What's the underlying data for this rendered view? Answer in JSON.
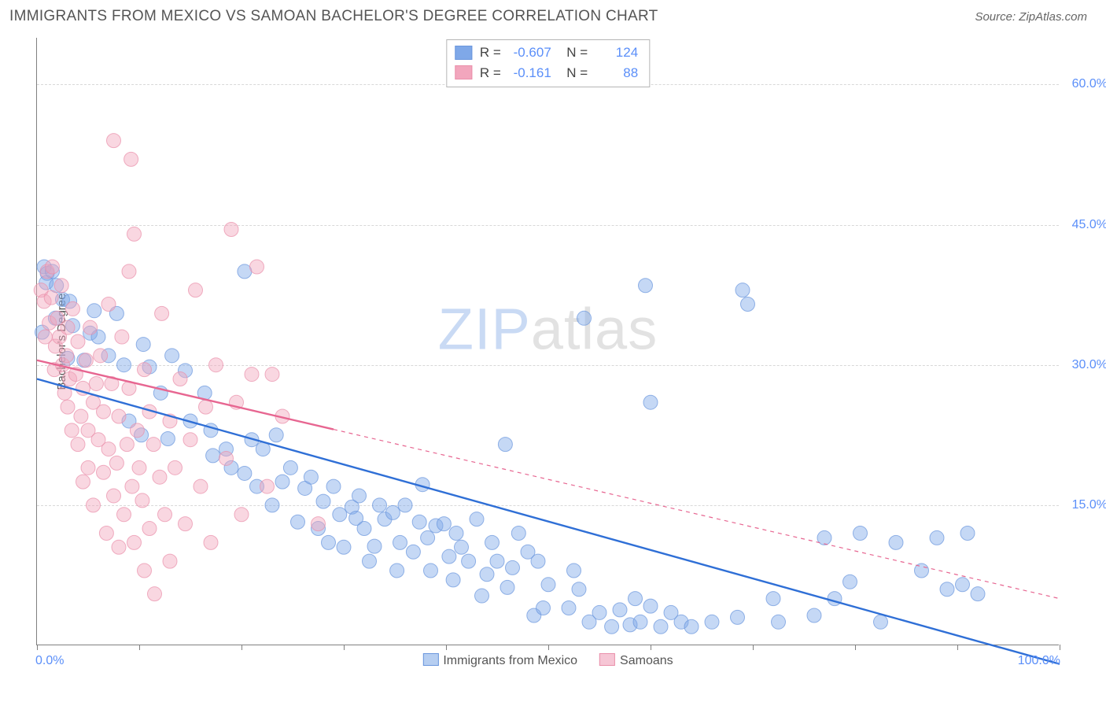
{
  "header": {
    "title": "IMMIGRANTS FROM MEXICO VS SAMOAN BACHELOR'S DEGREE CORRELATION CHART",
    "source": "Source: ZipAtlas.com"
  },
  "watermark": {
    "part1": "ZIP",
    "part2": "atlas"
  },
  "chart": {
    "type": "scatter",
    "background_color": "#ffffff",
    "grid_color": "#d8d8d8",
    "axis_color": "#808080",
    "ylabel": "Bachelor's Degree",
    "ylabel_fontsize": 15,
    "xlim": [
      0,
      100
    ],
    "ylim": [
      0,
      65
    ],
    "xtick_positions": [
      0,
      10,
      20,
      30,
      40,
      50,
      60,
      70,
      80,
      90,
      100
    ],
    "ytick_values": [
      15,
      30,
      45,
      60
    ],
    "ytick_labels": [
      "15.0%",
      "30.0%",
      "45.0%",
      "60.0%"
    ],
    "xaxis_label_left": "0.0%",
    "xaxis_label_right": "100.0%",
    "tick_label_color": "#5b8ff9",
    "tick_label_fontsize": 16,
    "marker_radius": 9,
    "marker_opacity": 0.45,
    "line_width": 2.4,
    "series": [
      {
        "name": "Immigrants from Mexico",
        "color": "#7fa8e8",
        "stroke": "#6a96dd",
        "line_color": "#2f6fd6",
        "line_dash": "none",
        "trend": {
          "x1": 0,
          "y1": 28.5,
          "x2": 100,
          "y2": -2.0
        },
        "legend": {
          "R": "-0.607",
          "N": "124"
        },
        "points": [
          [
            0.7,
            40.5
          ],
          [
            1.0,
            39.8
          ],
          [
            1.5,
            40.0
          ],
          [
            0.9,
            38.8
          ],
          [
            1.9,
            38.5
          ],
          [
            2.5,
            37.0
          ],
          [
            1.8,
            35.0
          ],
          [
            0.5,
            33.5
          ],
          [
            3.2,
            36.8
          ],
          [
            3.5,
            34.2
          ],
          [
            5.6,
            35.8
          ],
          [
            5.2,
            33.4
          ],
          [
            3.0,
            30.7
          ],
          [
            4.6,
            30.5
          ],
          [
            6.0,
            33.0
          ],
          [
            7.8,
            35.5
          ],
          [
            7.0,
            31.0
          ],
          [
            8.5,
            30.0
          ],
          [
            10.4,
            32.2
          ],
          [
            11.0,
            29.8
          ],
          [
            13.2,
            31.0
          ],
          [
            12.1,
            27.0
          ],
          [
            9.0,
            24.0
          ],
          [
            10.2,
            22.5
          ],
          [
            12.8,
            22.1
          ],
          [
            14.5,
            29.4
          ],
          [
            15.0,
            24.0
          ],
          [
            16.4,
            27.0
          ],
          [
            17.0,
            23.0
          ],
          [
            17.2,
            20.3
          ],
          [
            18.5,
            21.0
          ],
          [
            19.0,
            19.0
          ],
          [
            20.3,
            18.4
          ],
          [
            21.0,
            22.0
          ],
          [
            21.5,
            17.0
          ],
          [
            22.1,
            21.0
          ],
          [
            23.0,
            15.0
          ],
          [
            23.4,
            22.5
          ],
          [
            24.0,
            17.5
          ],
          [
            24.8,
            19.0
          ],
          [
            25.5,
            13.2
          ],
          [
            26.2,
            16.8
          ],
          [
            26.8,
            18.0
          ],
          [
            27.5,
            12.5
          ],
          [
            28.0,
            15.4
          ],
          [
            28.5,
            11.0
          ],
          [
            29.0,
            17.0
          ],
          [
            29.6,
            14.0
          ],
          [
            30.0,
            10.5
          ],
          [
            30.8,
            14.8
          ],
          [
            31.2,
            13.6
          ],
          [
            31.5,
            16.0
          ],
          [
            32.0,
            12.5
          ],
          [
            32.5,
            9.0
          ],
          [
            33.0,
            10.6
          ],
          [
            33.5,
            15.0
          ],
          [
            34.0,
            13.5
          ],
          [
            34.8,
            14.2
          ],
          [
            35.2,
            8.0
          ],
          [
            35.5,
            11.0
          ],
          [
            36.0,
            15.0
          ],
          [
            36.8,
            10.0
          ],
          [
            37.4,
            13.2
          ],
          [
            37.7,
            17.2
          ],
          [
            38.2,
            11.5
          ],
          [
            38.5,
            8.0
          ],
          [
            39.0,
            12.8
          ],
          [
            39.8,
            13.0
          ],
          [
            40.3,
            9.5
          ],
          [
            40.7,
            7.0
          ],
          [
            41.0,
            12.0
          ],
          [
            41.5,
            10.5
          ],
          [
            42.2,
            9.0
          ],
          [
            43.0,
            13.5
          ],
          [
            43.5,
            5.3
          ],
          [
            44.0,
            7.6
          ],
          [
            44.5,
            11.0
          ],
          [
            45.0,
            9.0
          ],
          [
            45.8,
            21.5
          ],
          [
            46.0,
            6.2
          ],
          [
            46.5,
            8.3
          ],
          [
            47.1,
            12.0
          ],
          [
            48.0,
            10.0
          ],
          [
            48.6,
            3.2
          ],
          [
            49.0,
            9.0
          ],
          [
            49.5,
            4.0
          ],
          [
            50.0,
            6.5
          ],
          [
            52.0,
            4.0
          ],
          [
            52.5,
            8.0
          ],
          [
            20.3,
            40.0
          ],
          [
            53.5,
            35.0
          ],
          [
            54.0,
            2.5
          ],
          [
            53.0,
            6.0
          ],
          [
            55.0,
            3.5
          ],
          [
            56.2,
            2.0
          ],
          [
            57.0,
            3.8
          ],
          [
            58.0,
            2.2
          ],
          [
            58.5,
            5.0
          ],
          [
            59.0,
            2.5
          ],
          [
            60.0,
            4.2
          ],
          [
            60.0,
            26.0
          ],
          [
            61.0,
            2.0
          ],
          [
            62.0,
            3.5
          ],
          [
            63.0,
            2.5
          ],
          [
            64.0,
            2.0
          ],
          [
            66.0,
            2.5
          ],
          [
            59.5,
            38.5
          ],
          [
            68.5,
            3.0
          ],
          [
            69.0,
            38.0
          ],
          [
            72.0,
            5.0
          ],
          [
            72.5,
            2.5
          ],
          [
            76.0,
            3.2
          ],
          [
            77.0,
            11.5
          ],
          [
            78.0,
            5.0
          ],
          [
            79.5,
            6.8
          ],
          [
            80.5,
            12.0
          ],
          [
            69.5,
            36.5
          ],
          [
            82.5,
            2.5
          ],
          [
            84.0,
            11.0
          ],
          [
            86.5,
            8.0
          ],
          [
            88.0,
            11.5
          ],
          [
            89.0,
            6.0
          ],
          [
            90.5,
            6.5
          ],
          [
            91.0,
            12.0
          ],
          [
            92.0,
            5.5
          ]
        ]
      },
      {
        "name": "Samoans",
        "color": "#f2a6bd",
        "stroke": "#ea8faa",
        "line_color": "#e76691",
        "line_dash": "solid_then_dashed",
        "dash_breakpoint_x": 29,
        "trend": {
          "x1": 0,
          "y1": 30.5,
          "x2": 100,
          "y2": 5.0
        },
        "legend": {
          "R": "-0.161",
          "N": "88"
        },
        "points": [
          [
            0.4,
            38.0
          ],
          [
            0.7,
            36.8
          ],
          [
            1.0,
            40.0
          ],
          [
            0.8,
            33.0
          ],
          [
            1.4,
            37.2
          ],
          [
            1.2,
            34.5
          ],
          [
            1.5,
            40.5
          ],
          [
            1.8,
            32.0
          ],
          [
            2.0,
            35.0
          ],
          [
            1.7,
            29.5
          ],
          [
            2.2,
            33.0
          ],
          [
            2.4,
            38.5
          ],
          [
            2.5,
            30.0
          ],
          [
            2.7,
            27.0
          ],
          [
            2.9,
            31.0
          ],
          [
            3.0,
            34.0
          ],
          [
            3.0,
            25.5
          ],
          [
            3.2,
            28.5
          ],
          [
            3.4,
            23.0
          ],
          [
            3.5,
            36.0
          ],
          [
            3.8,
            29.0
          ],
          [
            4.0,
            32.5
          ],
          [
            4.0,
            21.5
          ],
          [
            4.3,
            24.5
          ],
          [
            4.5,
            27.5
          ],
          [
            4.5,
            17.5
          ],
          [
            4.8,
            30.5
          ],
          [
            5.0,
            23.0
          ],
          [
            5.0,
            19.0
          ],
          [
            5.2,
            34.0
          ],
          [
            5.5,
            26.0
          ],
          [
            5.5,
            15.0
          ],
          [
            5.8,
            28.0
          ],
          [
            7.5,
            54.0
          ],
          [
            6.0,
            22.0
          ],
          [
            6.2,
            31.0
          ],
          [
            6.5,
            18.5
          ],
          [
            6.5,
            25.0
          ],
          [
            6.8,
            12.0
          ],
          [
            7.0,
            21.0
          ],
          [
            7.0,
            36.5
          ],
          [
            7.3,
            28.0
          ],
          [
            7.5,
            16.0
          ],
          [
            7.8,
            19.5
          ],
          [
            8.0,
            24.5
          ],
          [
            8.0,
            10.5
          ],
          [
            8.3,
            33.0
          ],
          [
            8.5,
            14.0
          ],
          [
            8.8,
            21.5
          ],
          [
            9.0,
            27.5
          ],
          [
            9.0,
            40.0
          ],
          [
            9.3,
            17.0
          ],
          [
            9.5,
            11.0
          ],
          [
            9.5,
            44.0
          ],
          [
            9.8,
            23.0
          ],
          [
            10.0,
            19.0
          ],
          [
            10.3,
            15.5
          ],
          [
            10.5,
            8.0
          ],
          [
            10.5,
            29.5
          ],
          [
            9.2,
            52.0
          ],
          [
            11.0,
            12.5
          ],
          [
            11.0,
            25.0
          ],
          [
            11.4,
            21.5
          ],
          [
            11.5,
            5.5
          ],
          [
            12.0,
            18.0
          ],
          [
            12.2,
            35.5
          ],
          [
            12.5,
            14.0
          ],
          [
            13.0,
            9.0
          ],
          [
            13.0,
            24.0
          ],
          [
            13.5,
            19.0
          ],
          [
            14.0,
            28.5
          ],
          [
            14.5,
            13.0
          ],
          [
            15.0,
            22.0
          ],
          [
            15.5,
            38.0
          ],
          [
            16.0,
            17.0
          ],
          [
            16.5,
            25.5
          ],
          [
            17.0,
            11.0
          ],
          [
            17.5,
            30.0
          ],
          [
            18.5,
            20.0
          ],
          [
            19.0,
            44.5
          ],
          [
            19.5,
            26.0
          ],
          [
            20.0,
            14.0
          ],
          [
            21.0,
            29.0
          ],
          [
            21.5,
            40.5
          ],
          [
            22.5,
            17.0
          ],
          [
            24.0,
            24.5
          ],
          [
            23.0,
            29.0
          ],
          [
            27.5,
            13.0
          ]
        ]
      }
    ],
    "bottom_legend": [
      {
        "swatch_fill": "#b6cef1",
        "swatch_stroke": "#6a96dd",
        "label": "Immigrants from Mexico"
      },
      {
        "swatch_fill": "#f6c6d5",
        "swatch_stroke": "#ea8faa",
        "label": "Samoans"
      }
    ]
  }
}
